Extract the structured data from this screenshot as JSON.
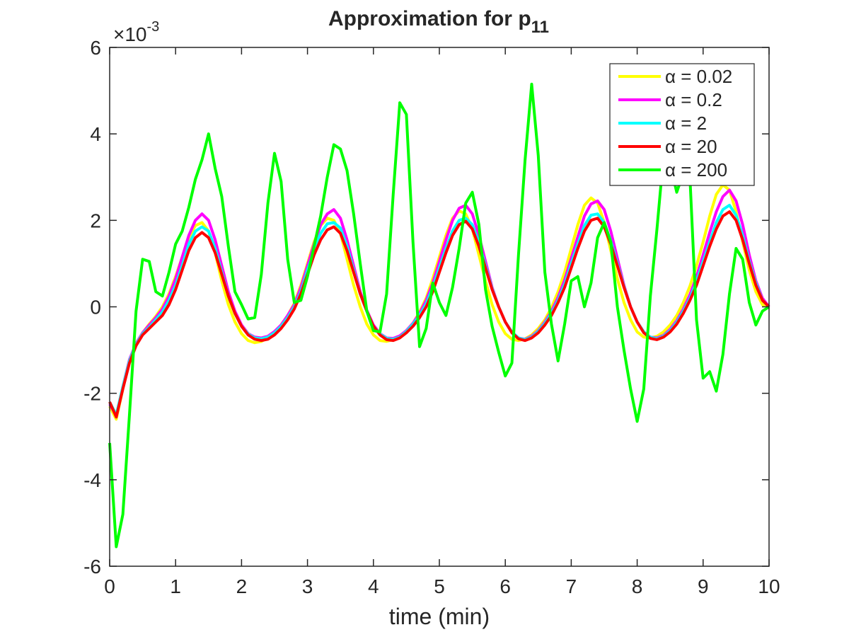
{
  "chart_data": {
    "type": "line",
    "title": "Approximation for p",
    "title_subscript": "11",
    "xlabel": "time (min)",
    "y_multiplier": "×10",
    "y_multiplier_exponent": "-3",
    "xlim": [
      0,
      10
    ],
    "ylim": [
      -6,
      6
    ],
    "xticks": [
      0,
      1,
      2,
      3,
      4,
      5,
      6,
      7,
      8,
      9,
      10
    ],
    "yticks": [
      -6,
      -4,
      -2,
      0,
      2,
      4,
      6
    ],
    "grid": false,
    "legend_position": "upper right",
    "x": [
      0,
      0.1,
      0.2,
      0.3,
      0.4,
      0.5,
      0.6,
      0.7,
      0.8,
      0.9,
      1,
      1.1,
      1.2,
      1.3,
      1.4,
      1.5,
      1.6,
      1.7,
      1.8,
      1.9,
      2,
      2.1,
      2.2,
      2.3,
      2.4,
      2.5,
      2.6,
      2.7,
      2.8,
      2.9,
      3,
      3.1,
      3.2,
      3.3,
      3.4,
      3.5,
      3.6,
      3.7,
      3.8,
      3.9,
      4,
      4.1,
      4.2,
      4.3,
      4.4,
      4.5,
      4.6,
      4.7,
      4.8,
      4.9,
      5,
      5.1,
      5.2,
      5.3,
      5.4,
      5.5,
      5.6,
      5.7,
      5.8,
      5.9,
      6,
      6.1,
      6.2,
      6.3,
      6.4,
      6.5,
      6.6,
      6.7,
      6.8,
      6.9,
      7,
      7.1,
      7.2,
      7.3,
      7.4,
      7.5,
      7.6,
      7.7,
      7.8,
      7.9,
      8,
      8.1,
      8.2,
      8.3,
      8.4,
      8.5,
      8.6,
      8.7,
      8.8,
      8.9,
      9,
      9.1,
      9.2,
      9.3,
      9.4,
      9.5,
      9.6,
      9.7,
      9.8,
      9.9,
      10
    ],
    "series": [
      {
        "name": "α = 0.02",
        "color": "#ffff00",
        "values": [
          -2.3,
          -2.6,
          -1.9,
          -1.25,
          -0.85,
          -0.6,
          -0.4,
          -0.22,
          0.0,
          0.3,
          0.7,
          1.15,
          1.6,
          1.88,
          1.95,
          1.75,
          1.25,
          0.6,
          0.05,
          -0.35,
          -0.62,
          -0.78,
          -0.83,
          -0.8,
          -0.72,
          -0.6,
          -0.42,
          -0.2,
          0.08,
          0.5,
          1.0,
          1.5,
          1.88,
          2.05,
          2.0,
          1.7,
          1.1,
          0.5,
          0.0,
          -0.4,
          -0.65,
          -0.78,
          -0.8,
          -0.76,
          -0.68,
          -0.55,
          -0.38,
          -0.12,
          0.2,
          0.65,
          1.15,
          1.65,
          2.05,
          2.22,
          2.15,
          1.8,
          1.2,
          0.6,
          0.05,
          -0.35,
          -0.62,
          -0.75,
          -0.78,
          -0.74,
          -0.65,
          -0.5,
          -0.3,
          -0.02,
          0.35,
          0.8,
          1.35,
          1.9,
          2.35,
          2.52,
          2.4,
          1.95,
          1.3,
          0.65,
          0.1,
          -0.3,
          -0.58,
          -0.7,
          -0.72,
          -0.68,
          -0.58,
          -0.42,
          -0.2,
          0.1,
          0.48,
          0.95,
          1.5,
          2.1,
          2.6,
          2.82,
          2.7,
          2.2,
          1.5,
          0.85,
          0.35,
          0.05,
          0.0
        ]
      },
      {
        "name": "α = 0.2",
        "color": "#ff00ff",
        "values": [
          -2.25,
          -2.52,
          -1.85,
          -1.22,
          -0.85,
          -0.6,
          -0.42,
          -0.25,
          -0.05,
          0.25,
          0.65,
          1.15,
          1.65,
          2.0,
          2.15,
          2.0,
          1.55,
          0.95,
          0.35,
          -0.1,
          -0.42,
          -0.62,
          -0.7,
          -0.72,
          -0.68,
          -0.57,
          -0.42,
          -0.2,
          0.05,
          0.45,
          0.95,
          1.45,
          1.9,
          2.15,
          2.25,
          2.05,
          1.55,
          0.95,
          0.35,
          -0.08,
          -0.42,
          -0.62,
          -0.72,
          -0.73,
          -0.67,
          -0.55,
          -0.38,
          -0.15,
          0.15,
          0.55,
          1.05,
          1.55,
          2.0,
          2.28,
          2.35,
          2.15,
          1.65,
          1.05,
          0.45,
          0.0,
          -0.35,
          -0.58,
          -0.72,
          -0.75,
          -0.68,
          -0.55,
          -0.35,
          -0.1,
          0.22,
          0.62,
          1.12,
          1.62,
          2.1,
          2.38,
          2.45,
          2.25,
          1.75,
          1.12,
          0.5,
          0.0,
          -0.35,
          -0.58,
          -0.7,
          -0.72,
          -0.66,
          -0.52,
          -0.32,
          -0.05,
          0.28,
          0.7,
          1.2,
          1.72,
          2.2,
          2.55,
          2.7,
          2.45,
          1.9,
          1.2,
          0.6,
          0.2,
          0.0
        ]
      },
      {
        "name": "α = 2",
        "color": "#00ffff",
        "values": [
          -2.2,
          -2.5,
          -1.85,
          -1.25,
          -0.88,
          -0.62,
          -0.47,
          -0.3,
          -0.12,
          0.15,
          0.5,
          0.95,
          1.45,
          1.75,
          1.85,
          1.75,
          1.35,
          0.8,
          0.25,
          -0.15,
          -0.45,
          -0.63,
          -0.72,
          -0.74,
          -0.7,
          -0.6,
          -0.45,
          -0.25,
          0.0,
          0.35,
          0.85,
          1.3,
          1.7,
          1.92,
          1.95,
          1.82,
          1.4,
          0.85,
          0.3,
          -0.1,
          -0.45,
          -0.63,
          -0.73,
          -0.75,
          -0.7,
          -0.57,
          -0.4,
          -0.2,
          0.07,
          0.45,
          0.9,
          1.35,
          1.75,
          2.0,
          2.05,
          1.9,
          1.48,
          0.95,
          0.42,
          0.0,
          -0.35,
          -0.58,
          -0.72,
          -0.76,
          -0.7,
          -0.57,
          -0.38,
          -0.15,
          0.15,
          0.52,
          1.0,
          1.45,
          1.88,
          2.12,
          2.15,
          1.95,
          1.52,
          1.0,
          0.47,
          0.0,
          -0.35,
          -0.58,
          -0.7,
          -0.74,
          -0.68,
          -0.55,
          -0.36,
          -0.1,
          0.2,
          0.58,
          1.05,
          1.5,
          1.95,
          2.25,
          2.35,
          2.12,
          1.65,
          1.05,
          0.55,
          0.15,
          0.0
        ]
      },
      {
        "name": "α = 20",
        "color": "#ff0000",
        "values": [
          -2.2,
          -2.55,
          -1.9,
          -1.3,
          -0.9,
          -0.65,
          -0.5,
          -0.35,
          -0.2,
          0.05,
          0.4,
          0.85,
          1.3,
          1.6,
          1.72,
          1.6,
          1.25,
          0.75,
          0.25,
          -0.15,
          -0.45,
          -0.65,
          -0.75,
          -0.78,
          -0.75,
          -0.65,
          -0.5,
          -0.3,
          -0.05,
          0.3,
          0.75,
          1.2,
          1.55,
          1.78,
          1.85,
          1.7,
          1.3,
          0.8,
          0.3,
          -0.1,
          -0.45,
          -0.65,
          -0.76,
          -0.78,
          -0.72,
          -0.6,
          -0.45,
          -0.25,
          0.0,
          0.35,
          0.8,
          1.25,
          1.65,
          1.9,
          1.98,
          1.8,
          1.4,
          0.9,
          0.4,
          0.0,
          -0.35,
          -0.6,
          -0.74,
          -0.78,
          -0.72,
          -0.6,
          -0.42,
          -0.2,
          0.1,
          0.45,
          0.9,
          1.35,
          1.75,
          2.0,
          2.05,
          1.85,
          1.45,
          0.95,
          0.45,
          0.0,
          -0.35,
          -0.6,
          -0.73,
          -0.76,
          -0.7,
          -0.58,
          -0.4,
          -0.15,
          0.15,
          0.5,
          0.95,
          1.4,
          1.8,
          2.1,
          2.2,
          2.0,
          1.55,
          1.0,
          0.5,
          0.15,
          0.0
        ]
      },
      {
        "name": "α = 200",
        "color": "#00ff00",
        "values": [
          -3.15,
          -5.55,
          -4.8,
          -2.5,
          -0.1,
          1.1,
          1.05,
          0.35,
          0.25,
          0.8,
          1.45,
          1.75,
          2.3,
          2.95,
          3.4,
          4.0,
          3.2,
          2.55,
          1.4,
          0.35,
          0.05,
          -0.28,
          -0.25,
          0.75,
          2.4,
          3.55,
          2.9,
          1.1,
          0.1,
          0.15,
          0.7,
          1.4,
          2.1,
          3.0,
          3.75,
          3.65,
          3.15,
          2.15,
          1.0,
          -0.1,
          -0.55,
          -0.58,
          0.3,
          2.6,
          4.72,
          4.45,
          1.5,
          -0.92,
          -0.5,
          0.55,
          0.1,
          -0.2,
          0.45,
          1.35,
          2.4,
          2.65,
          1.9,
          0.4,
          -0.45,
          -1.05,
          -1.6,
          -1.3,
          1.2,
          3.4,
          5.15,
          3.5,
          0.8,
          -0.4,
          -1.25,
          -0.4,
          0.6,
          0.7,
          0.0,
          0.55,
          1.6,
          1.95,
          1.5,
          0.0,
          -1.0,
          -1.9,
          -2.65,
          -1.9,
          0.25,
          1.8,
          3.5,
          3.3,
          2.65,
          3.1,
          3.0,
          -0.3,
          -1.65,
          -1.5,
          -1.95,
          -1.1,
          0.3,
          1.35,
          1.1,
          0.1,
          -0.42,
          -0.1,
          0.0
        ]
      }
    ]
  }
}
